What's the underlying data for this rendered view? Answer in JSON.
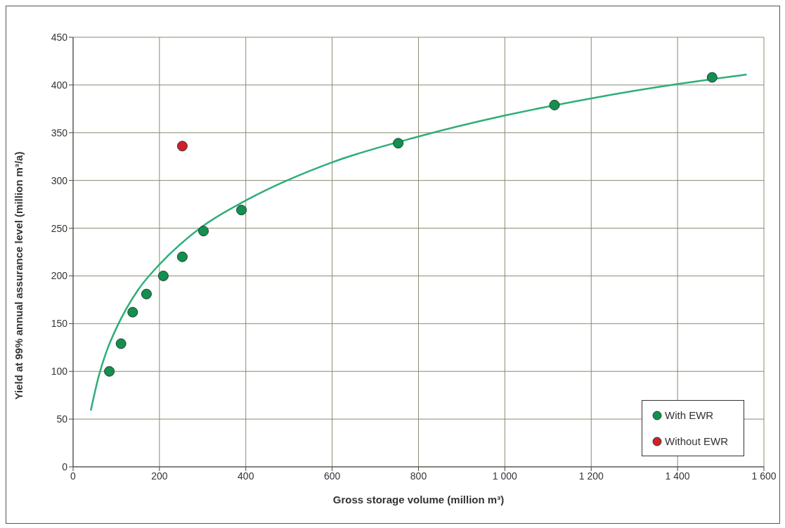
{
  "chart_data": {
    "type": "scatter",
    "xlabel": "Gross storage volume (million m³)",
    "ylabel": "Yield at 99% annual assurance level (million m³/a)",
    "xlim": [
      0,
      1600
    ],
    "ylim": [
      0,
      450
    ],
    "xticks": [
      0,
      200,
      400,
      600,
      800,
      {
        "value": 1000,
        "label": "1 000"
      },
      {
        "value": 1200,
        "label": "1 200"
      },
      {
        "value": 1400,
        "label": "1 400"
      },
      {
        "value": 1600,
        "label": "1 600"
      }
    ],
    "yticks": [
      0,
      50,
      100,
      150,
      200,
      250,
      300,
      350,
      400,
      450
    ],
    "grid": true,
    "legend": "bottom right",
    "marker": "circle",
    "series": [
      {
        "name": "With EWR",
        "color": "#138f4f",
        "x": [
          84,
          111,
          138,
          170,
          209,
          253,
          302,
          390,
          753,
          1115,
          1480
        ],
        "values": [
          100,
          129,
          162,
          181,
          200,
          220,
          247,
          269,
          339,
          379,
          408
        ]
      },
      {
        "name": "Without EWR",
        "color": "#d0202a",
        "x": [
          253
        ],
        "values": [
          336
        ]
      },
      {
        "type": "line",
        "color": "#2fae78",
        "marker": "none",
        "line_style": "solid",
        "x": [
          41,
          60,
          80,
          100,
          150,
          200,
          300,
          400,
          600,
          800,
          1000,
          1200,
          1400,
          1560
        ],
        "values": [
          59,
          96,
          124,
          145,
          185,
          212,
          252,
          279,
          319,
          346,
          368,
          386,
          401,
          411
        ]
      }
    ]
  }
}
